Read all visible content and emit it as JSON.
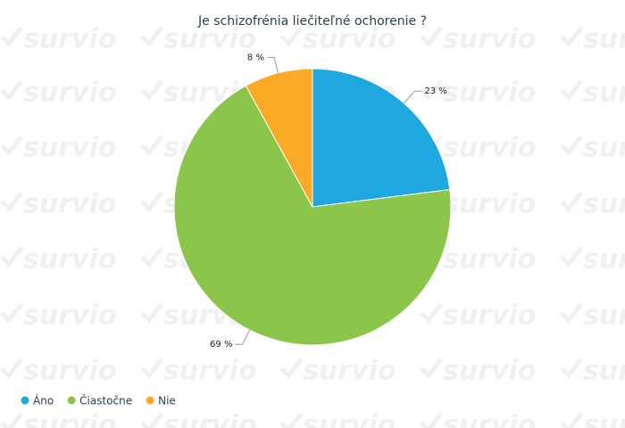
{
  "chart_data": {
    "type": "pie",
    "title": "Je schizofrénia liečiteľné ochorenie ?",
    "watermark": "survio",
    "categories": [
      "Áno",
      "Čiastočne",
      "Nie"
    ],
    "values": [
      23,
      69,
      8
    ],
    "value_labels": [
      "23 %",
      "69 %",
      "8 %"
    ],
    "colors": [
      "#1fa8e0",
      "#8bc54a",
      "#fbaa26"
    ],
    "legend": "bottom-left"
  }
}
